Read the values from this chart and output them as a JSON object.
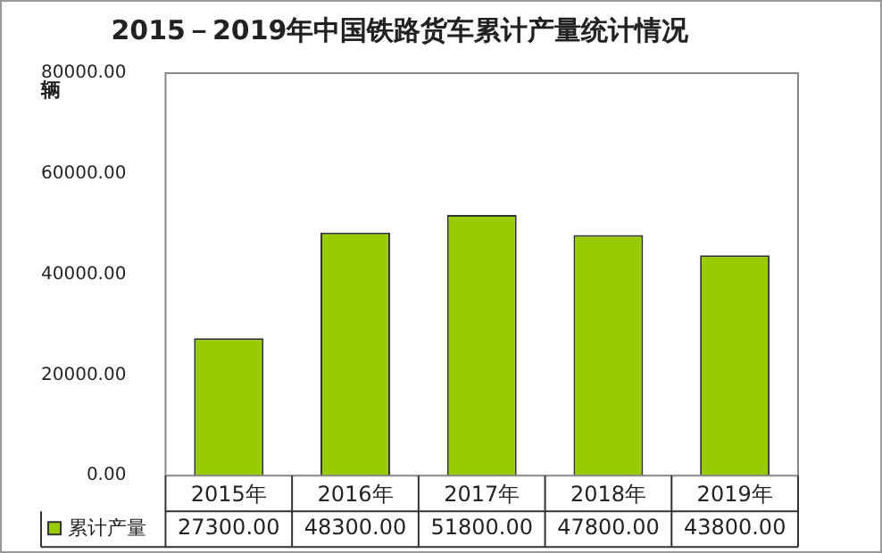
{
  "chart_data": {
    "type": "bar",
    "title": "2015－2019年中国铁路货车累计产量统计情况",
    "ylabel": "辆",
    "categories": [
      "2015年",
      "2016年",
      "2017年",
      "2018年",
      "2019年"
    ],
    "series": [
      {
        "name": "累计产量",
        "color": "#99cc00",
        "values": [
          27300,
          48300,
          51800,
          47800,
          43800
        ],
        "value_labels": [
          "27300.00",
          "48300.00",
          "51800.00",
          "47800.00",
          "43800.00"
        ]
      }
    ],
    "ylim": [
      0,
      80000
    ],
    "yticks": [
      {
        "value": 0,
        "label": "0.00"
      },
      {
        "value": 20000,
        "label": "20000.00"
      },
      {
        "value": 40000,
        "label": "40000.00"
      },
      {
        "value": 60000,
        "label": "60000.00"
      },
      {
        "value": 80000,
        "label": "80000.00"
      }
    ],
    "grid": false,
    "legend": "bottom"
  }
}
